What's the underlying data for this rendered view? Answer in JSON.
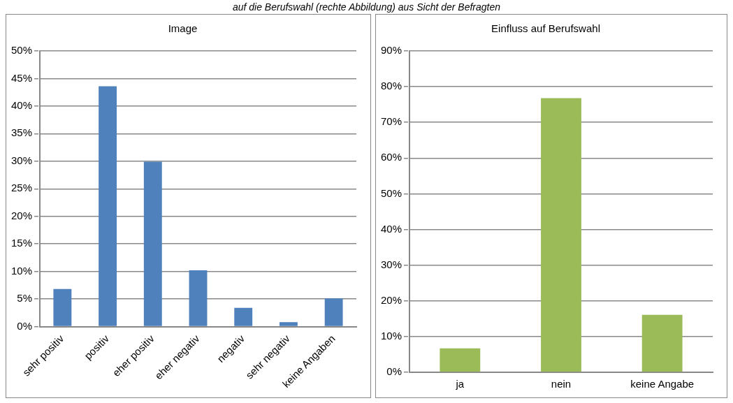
{
  "chart_data": [
    {
      "type": "bar",
      "title": "Image",
      "annotations": [
        "auf die Berufswahl (rechte Abbildung) aus Sicht der Befragten"
      ],
      "categories": [
        "sehr positiv",
        "positiv",
        "eher positiv",
        "eher negativ",
        "negativ",
        "sehr negativ",
        "keine Angaben"
      ],
      "values": [
        6.8,
        43.6,
        29.9,
        10.2,
        3.4,
        0.8,
        5.1
      ],
      "color": "#4f81bd",
      "ylim": [
        0,
        50
      ],
      "yticks": [
        {
          "value": 0,
          "label": "0%"
        },
        {
          "value": 5,
          "label": "5%"
        },
        {
          "value": 10,
          "label": "10%"
        },
        {
          "value": 15,
          "label": "15%"
        },
        {
          "value": 20,
          "label": "20%"
        },
        {
          "value": 25,
          "label": "25%"
        },
        {
          "value": 30,
          "label": "30%"
        },
        {
          "value": 35,
          "label": "35%"
        },
        {
          "value": 40,
          "label": "40%"
        },
        {
          "value": 45,
          "label": "45%"
        },
        {
          "value": 50,
          "label": "50%"
        }
      ],
      "grid": "y",
      "legend": false
    },
    {
      "type": "bar",
      "title": "Einfluss auf Berufswahl",
      "categories": [
        "ja",
        "nein",
        "keine Angabe"
      ],
      "values": [
        6.7,
        76.8,
        16.1
      ],
      "color": "#9bbb59",
      "ylim": [
        0,
        90
      ],
      "yticks": [
        {
          "value": 0,
          "label": "0%"
        },
        {
          "value": 10,
          "label": "10%"
        },
        {
          "value": 20,
          "label": "20%"
        },
        {
          "value": 30,
          "label": "30%"
        },
        {
          "value": 40,
          "label": "40%"
        },
        {
          "value": 50,
          "label": "50%"
        },
        {
          "value": 60,
          "label": "60%"
        },
        {
          "value": 70,
          "label": "70%"
        },
        {
          "value": 80,
          "label": "80%"
        },
        {
          "value": 90,
          "label": "90%"
        }
      ],
      "grid": "y",
      "legend": false
    }
  ]
}
